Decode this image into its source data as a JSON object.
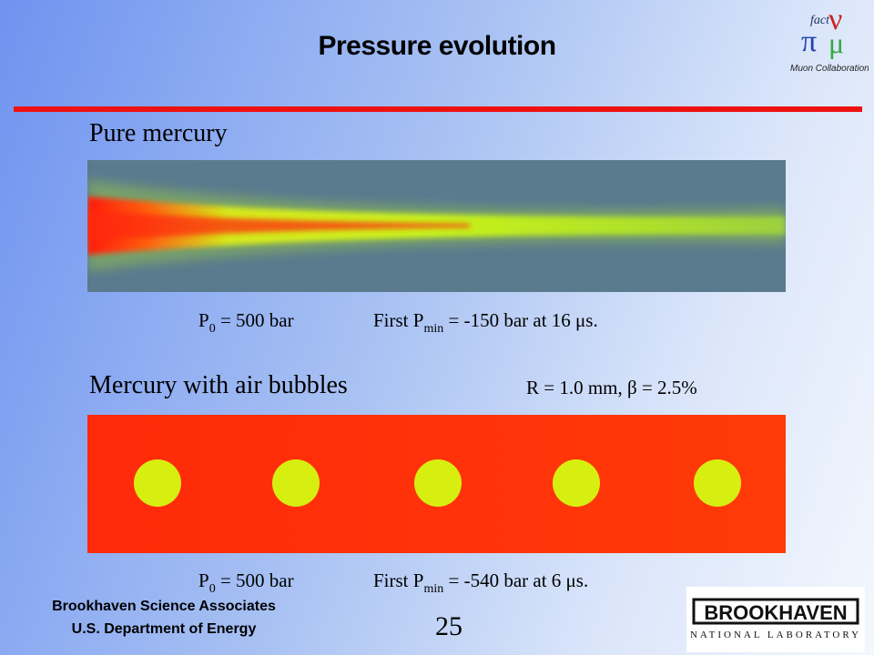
{
  "slide": {
    "title": "Pressure evolution",
    "page_number": "25"
  },
  "top_logo": {
    "text": "Muon Collaboration",
    "symbols": "fact ν π μ"
  },
  "pure_mercury": {
    "label": "Pure mercury",
    "caption_p0_main": "P",
    "caption_p0_sub": "0",
    "caption_p0_rest": " = 500 bar",
    "caption_pmin_main": "First P",
    "caption_pmin_sub": "min",
    "caption_pmin_rest": " = -150 bar at 16 μs."
  },
  "air_bubbles": {
    "label": "Mercury with air bubbles",
    "params": "R = 1.0 mm, β = 2.5%",
    "bubble_count": 5,
    "caption_p0_main": "P",
    "caption_p0_sub": "0",
    "caption_p0_rest": " = 500 bar",
    "caption_pmin_main": "First P",
    "caption_pmin_sub": "min",
    "caption_pmin_rest": " = -540 bar at 6 μs."
  },
  "footer": {
    "line1": "Brookhaven Science Associates",
    "line2": "U.S. Department of Energy"
  },
  "bnl_logo": {
    "name": "BROOKHAVEN",
    "subtitle": "NATIONAL LABORATORY"
  },
  "colors": {
    "rule": "#ee1111",
    "bubble": "#d7ef10",
    "hot_red": "#ff2a0a",
    "panel_bg": "#5a7a8e"
  }
}
